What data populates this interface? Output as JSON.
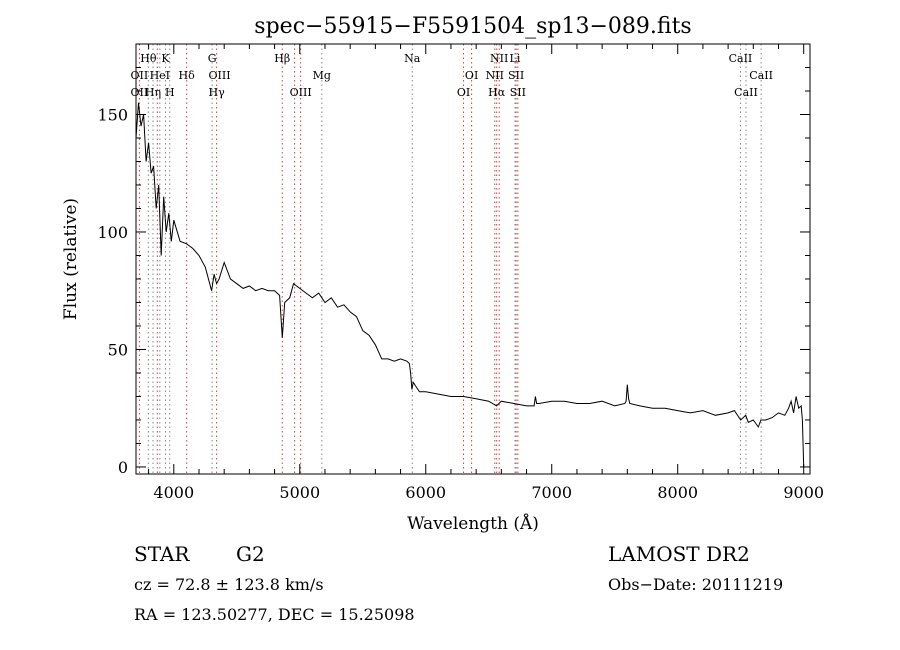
{
  "chart_data": {
    "type": "line",
    "title": "spec−55915−F5591504_sp13−089.fits",
    "xlabel": "Wavelength (Å)",
    "ylabel": "Flux (relative)",
    "xlim": [
      3700,
      9050
    ],
    "ylim": [
      -3,
      180
    ],
    "x_ticks": [
      4000,
      5000,
      6000,
      7000,
      8000,
      9000
    ],
    "y_ticks": [
      0,
      50,
      100,
      150
    ],
    "grid": false,
    "series": [
      {
        "x": [
          3700,
          3720,
          3740,
          3760,
          3780,
          3800,
          3820,
          3840,
          3860,
          3880,
          3900,
          3920,
          3940,
          3960,
          3980,
          4000,
          4050,
          4100,
          4150,
          4200,
          4250,
          4300,
          4320,
          4340,
          4360,
          4400,
          4450,
          4500,
          4550,
          4600,
          4650,
          4700,
          4750,
          4800,
          4840,
          4861,
          4880,
          4920,
          4950,
          5000,
          5050,
          5100,
          5150,
          5200,
          5250,
          5300,
          5350,
          5400,
          5450,
          5500,
          5550,
          5600,
          5650,
          5700,
          5750,
          5800,
          5850,
          5870,
          5880,
          5890,
          5900,
          5950,
          6000,
          6100,
          6200,
          6300,
          6400,
          6500,
          6562,
          6600,
          6700,
          6800,
          6860,
          6870,
          6880,
          6900,
          7000,
          7100,
          7200,
          7300,
          7400,
          7500,
          7580,
          7590,
          7600,
          7610,
          7620,
          7700,
          7800,
          7900,
          8000,
          8100,
          8200,
          8300,
          8400,
          8450,
          8500,
          8540,
          8560,
          8600,
          8640,
          8660,
          8700,
          8750,
          8800,
          8850,
          8880,
          8900,
          8920,
          8940,
          8960,
          8980,
          8990,
          9000
        ],
        "y": [
          140,
          155,
          145,
          150,
          130,
          138,
          125,
          128,
          110,
          120,
          90,
          115,
          100,
          108,
          96,
          105,
          96,
          95,
          93,
          90,
          85,
          75,
          82,
          78,
          80,
          87,
          80,
          78,
          76,
          77,
          75,
          76,
          75,
          75,
          73,
          55,
          70,
          72,
          78,
          76,
          74,
          72,
          74,
          70,
          72,
          68,
          69,
          66,
          64,
          58,
          56,
          52,
          46,
          46,
          45,
          46,
          45,
          44,
          40,
          33,
          36,
          32,
          32,
          31,
          30,
          30,
          29,
          28,
          26,
          28,
          27,
          26,
          26,
          30,
          27,
          27,
          28,
          28,
          27,
          27,
          28,
          26,
          27,
          28,
          35,
          29,
          27,
          26,
          25,
          25,
          24,
          23,
          24,
          22,
          23,
          24,
          20,
          22,
          19,
          20,
          17,
          20,
          20,
          21,
          23,
          22,
          25,
          28,
          23,
          30,
          25,
          26,
          20,
          0
        ]
      }
    ],
    "line_identifications": {
      "row1": [
        {
          "label": "Hθ",
          "wl": 3798
        },
        {
          "label": "K",
          "wl": 3934
        },
        {
          "label": "G",
          "wl": 4304
        },
        {
          "label": "Hβ",
          "wl": 4861
        },
        {
          "label": "Na",
          "wl": 5893
        },
        {
          "label": "NII",
          "wl": 6583
        },
        {
          "label": "Li",
          "wl": 6708
        },
        {
          "label": "CaII",
          "wl": 8498
        }
      ],
      "row2": [
        {
          "label": "OII",
          "wl": 3727
        },
        {
          "label": "HeI",
          "wl": 3889
        },
        {
          "label": "Hδ",
          "wl": 4102
        },
        {
          "label": "OIII",
          "wl": 4363
        },
        {
          "label": "Mg",
          "wl": 5175
        },
        {
          "label": "OI",
          "wl": 6364
        },
        {
          "label": "NII",
          "wl": 6548
        },
        {
          "label": "SII",
          "wl": 6717
        },
        {
          "label": "CaII",
          "wl": 8662
        }
      ],
      "row3": [
        {
          "label": "OII",
          "wl": 3727
        },
        {
          "label": "Hη",
          "wl": 3835
        },
        {
          "label": "H",
          "wl": 3968
        },
        {
          "label": "Hγ",
          "wl": 4340
        },
        {
          "label": "OIII",
          "wl": 5007
        },
        {
          "label": "OI",
          "wl": 6300
        },
        {
          "label": "Hα",
          "wl": 6563
        },
        {
          "label": "SII",
          "wl": 6731
        },
        {
          "label": "CaII",
          "wl": 8542
        }
      ]
    },
    "marker_lines": {
      "emission_wl": [
        3727,
        3869,
        4102,
        4340,
        4861,
        4959,
        5007,
        6300,
        6364,
        6548,
        6563,
        6583,
        6717,
        6731
      ],
      "absorption_wl": [
        3798,
        3835,
        3889,
        3934,
        3968,
        4304,
        5175,
        5893,
        6708,
        8498,
        8542,
        8662
      ]
    }
  },
  "info": {
    "class_label": "STAR",
    "subclass": "G2",
    "survey": "LAMOST DR2",
    "cz": "cz = 72.8 ± 123.8 km/s",
    "obs_date": "Obs−Date: 20111219",
    "coords": "RA = 123.50277, DEC =  15.25098"
  }
}
